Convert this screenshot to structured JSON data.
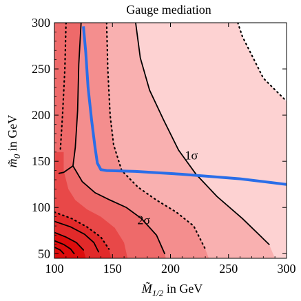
{
  "chart_data": {
    "type": "contour",
    "title": "Gauge mediation",
    "xlabel": {
      "symbol": "M̃",
      "sub": "1/2",
      "unit": " in GeV"
    },
    "ylabel": {
      "symbol": "m̃",
      "sub": "0",
      "unit": "  in GeV"
    },
    "xlim": [
      100,
      300
    ],
    "ylim": [
      45,
      300
    ],
    "xticks": [
      100,
      150,
      200,
      250,
      300
    ],
    "yticks": [
      50,
      100,
      150,
      200,
      250,
      300
    ],
    "grid": false,
    "annotations": [
      {
        "text": "1σ",
        "x": 218,
        "y": 152
      },
      {
        "text": "2σ",
        "x": 177,
        "y": 82
      }
    ],
    "fill_colors": [
      "#fdd2d2",
      "#f9b0b0",
      "#f48e8e",
      "#ee6a6a",
      "#e84848",
      "#e22a2a",
      "#dd0d0d"
    ],
    "contours": [
      {
        "name": "outer-dotted",
        "style": "dotted",
        "points": [
          [
            258,
            300
          ],
          [
            262,
            285
          ],
          [
            270,
            265
          ],
          [
            280,
            240
          ],
          [
            300,
            215
          ]
        ]
      },
      {
        "name": "solid-1sigma",
        "style": "solid",
        "points": [
          [
            170,
            300
          ],
          [
            174,
            262
          ],
          [
            182,
            227
          ],
          [
            194,
            195
          ],
          [
            207,
            162
          ],
          [
            222,
            136
          ],
          [
            240,
            112
          ],
          [
            262,
            88
          ],
          [
            285,
            60
          ]
        ]
      },
      {
        "name": "dotted-2sigma-upper",
        "style": "dotted",
        "points": [
          [
            145,
            300
          ],
          [
            146,
            250
          ],
          [
            148,
            200
          ],
          [
            151,
            168
          ],
          [
            158,
            140
          ],
          [
            172,
            122
          ],
          [
            188,
            108
          ],
          [
            205,
            95
          ],
          [
            220,
            80
          ],
          [
            230,
            55
          ]
        ]
      },
      {
        "name": "solid-2sigma",
        "style": "solid",
        "points": [
          [
            123,
            300
          ],
          [
            121,
            255
          ],
          [
            120,
            205
          ],
          [
            118,
            165
          ],
          [
            116,
            145
          ],
          [
            108,
            138
          ],
          [
            104,
            137
          ]
        ]
      },
      {
        "name": "solid-2sigma-branch",
        "style": "solid",
        "points": [
          [
            116,
            145
          ],
          [
            124,
            128
          ],
          [
            135,
            116
          ],
          [
            148,
            108
          ],
          [
            162,
            100
          ],
          [
            175,
            88
          ],
          [
            188,
            70
          ],
          [
            195,
            50
          ]
        ]
      },
      {
        "name": "dotted-left",
        "style": "dotted",
        "points": [
          [
            110,
            300
          ],
          [
            109,
            250
          ],
          [
            107,
            200
          ],
          [
            105,
            160
          ]
        ]
      },
      {
        "name": "dotted-inner-1",
        "style": "dotted",
        "points": [
          [
            100,
            95
          ],
          [
            115,
            88
          ],
          [
            128,
            79
          ],
          [
            140,
            68
          ],
          [
            147,
            55
          ]
        ]
      },
      {
        "name": "solid-inner-1",
        "style": "solid",
        "points": [
          [
            100,
            85
          ],
          [
            114,
            79
          ],
          [
            126,
            71
          ],
          [
            134,
            62
          ],
          [
            138,
            52
          ]
        ]
      },
      {
        "name": "solid-inner-2",
        "style": "solid",
        "points": [
          [
            100,
            73
          ],
          [
            110,
            68
          ],
          [
            119,
            62
          ],
          [
            125,
            54
          ]
        ]
      },
      {
        "name": "solid-inner-3",
        "style": "solid",
        "points": [
          [
            100,
            64
          ],
          [
            108,
            60
          ],
          [
            114,
            55
          ],
          [
            117,
            50
          ]
        ]
      },
      {
        "name": "solid-inner-4",
        "style": "solid",
        "points": [
          [
            100,
            57
          ],
          [
            105,
            54
          ],
          [
            108,
            50
          ]
        ]
      }
    ],
    "blue_line": {
      "color": "#2a6ee8",
      "points": [
        [
          125,
          296
        ],
        [
          127,
          268
        ],
        [
          129,
          230
        ],
        [
          132,
          195
        ],
        [
          135,
          165
        ],
        [
          137,
          148
        ],
        [
          140,
          141
        ],
        [
          145,
          140
        ],
        [
          170,
          139
        ],
        [
          210,
          136
        ],
        [
          260,
          131
        ],
        [
          300,
          125
        ]
      ]
    }
  }
}
